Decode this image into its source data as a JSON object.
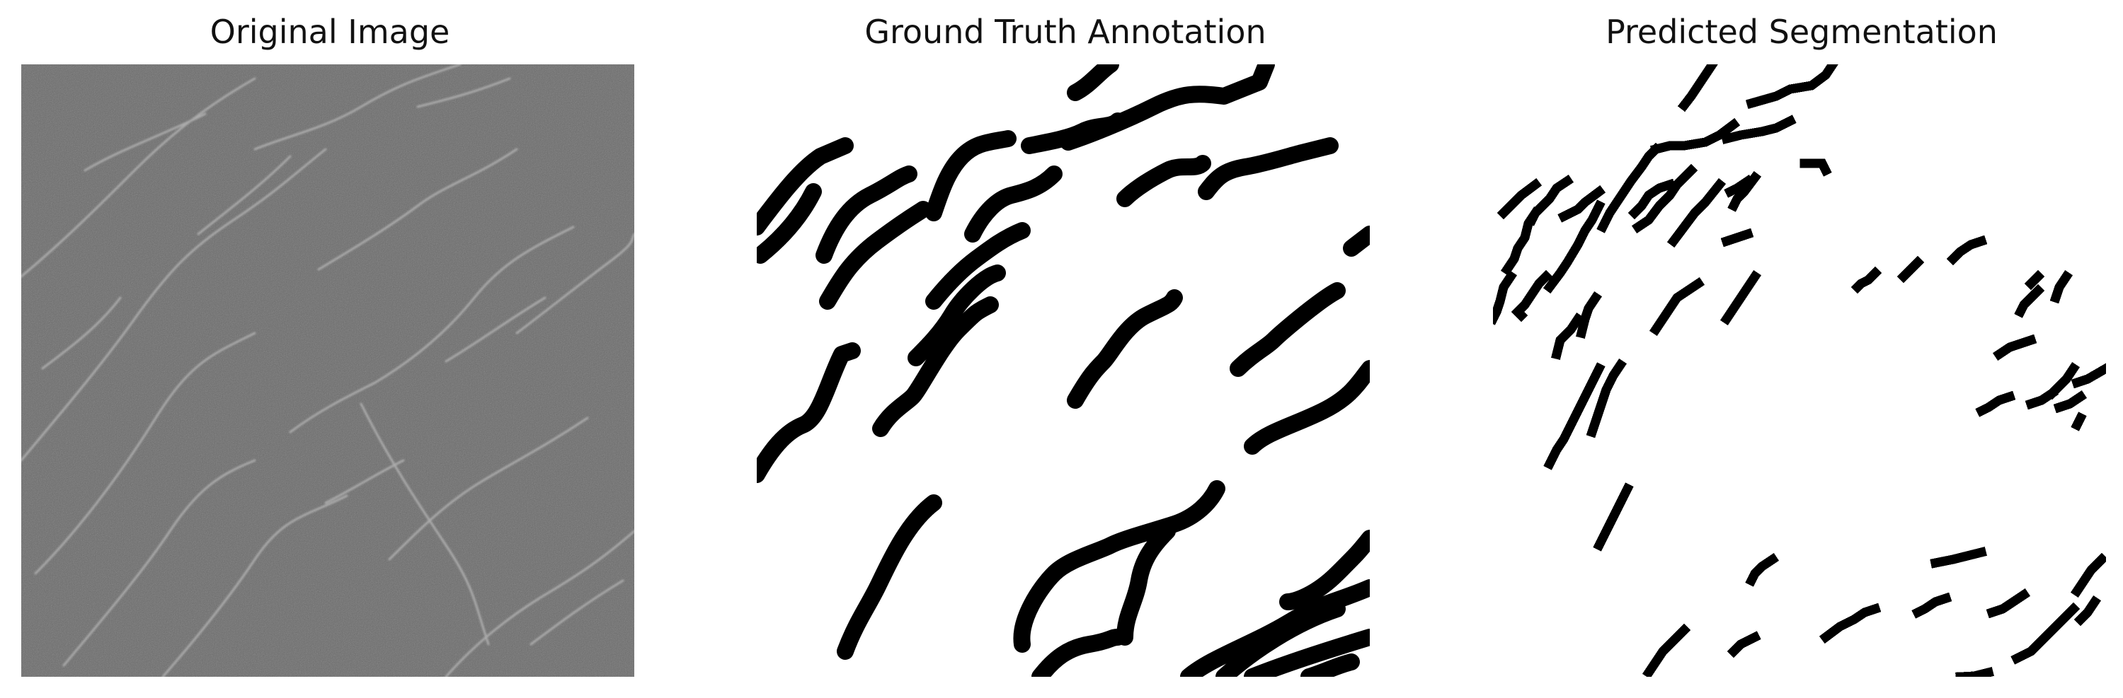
{
  "panels": [
    {
      "title": "Original Image"
    },
    {
      "title": "Ground Truth Annotation"
    },
    {
      "title": "Predicted Segmentation"
    }
  ],
  "colors": {
    "background": "#ffffff",
    "image_base": "#6e6e6e",
    "crack_light": "#c8c8c8",
    "mask_foreground": "#000000",
    "mask_background": "#ffffff"
  }
}
